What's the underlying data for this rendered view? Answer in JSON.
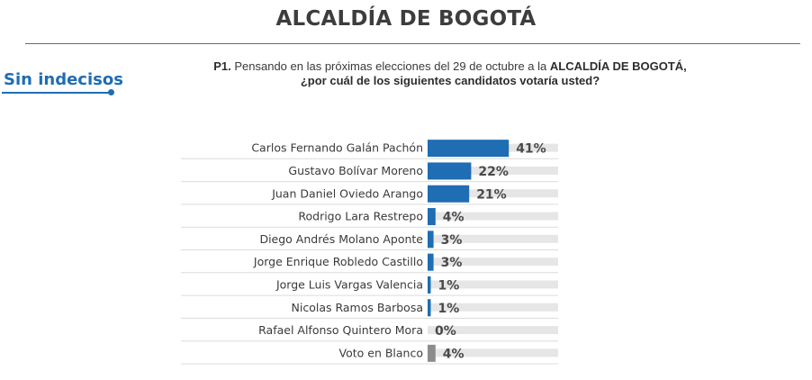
{
  "header": {
    "title": "ALCALDÍA DE BOGOTÁ",
    "tag": "Sin indecisos",
    "question_num": "P1.",
    "question_text": "Pensando en las próximas elecciones del 29 de octubre a la",
    "question_bold": "ALCALDÍA DE BOGOTÁ,",
    "question_line2": "¿por cuál de los siguientes candidatos votaría usted?"
  },
  "colors": {
    "bar": "#1f6db3",
    "blank_bar": "#8c8c8c",
    "track": "#e6e6e6",
    "accent": "#1f6db3"
  },
  "chart_data": {
    "type": "bar",
    "orientation": "horizontal",
    "categories": [
      "Carlos Fernando Galán Pachón",
      "Gustavo Bolívar Moreno",
      "Juan Daniel Oviedo Arango",
      "Rodrigo Lara Restrepo",
      "Diego Andrés Molano Aponte",
      "Jorge Enrique Robledo Castillo",
      "Jorge Luis Vargas Valencia",
      "Nicolas Ramos Barbosa",
      "Rafael Alfonso Quintero Mora",
      "Voto en Blanco"
    ],
    "values": [
      41,
      22,
      21,
      4,
      3,
      3,
      1,
      1,
      0,
      4
    ],
    "value_labels": [
      "41%",
      "22%",
      "21%",
      "4%",
      "3%",
      "3%",
      "1%",
      "1%",
      "0%",
      "4%"
    ],
    "xlim": [
      0,
      100
    ],
    "grid": false,
    "title": "",
    "xlabel": "",
    "ylabel": ""
  }
}
